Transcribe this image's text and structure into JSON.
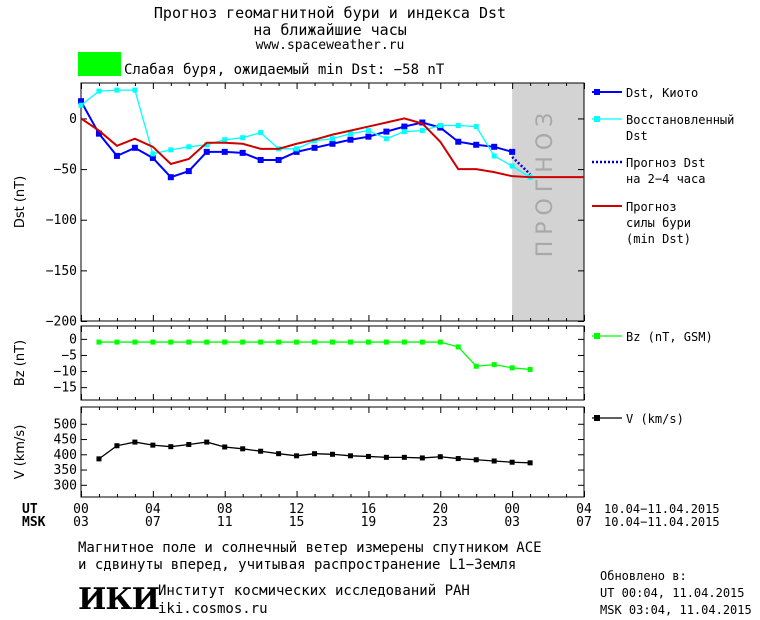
{
  "header": {
    "title_line1": "Прогноз геомагнитной бури и индекса Dst",
    "title_line2": "на ближайшие часы",
    "url": "www.spaceweather.ru",
    "status_text": "Слабая буря, ожидаемый min Dst: −58 nT",
    "status_color": "#00ff00"
  },
  "footer": {
    "note_line1": "Магнитное поле и солнечный ветер измерены спутником ACE",
    "note_line2": "и сдвинуты вперед, учитывая распространение L1−Земля",
    "institute_name": "Институт космических исследований РАН",
    "institute_site": "iki.cosmos.ru",
    "logo_text": "ИКИ",
    "updated_label": "Обновлено в:",
    "updated_ut": "UT  00:04, 11.04.2015",
    "updated_msk": "MSK 03:04, 11.04.2015"
  },
  "time_axis": {
    "ut_label": "UT",
    "msk_label": "MSK",
    "ut_ticks": [
      "00",
      "04",
      "08",
      "12",
      "16",
      "20",
      "00",
      "04"
    ],
    "msk_ticks": [
      "03",
      "07",
      "11",
      "15",
      "19",
      "23",
      "03",
      "07"
    ],
    "ut_range": "10.04−11.04.2015",
    "msk_range": "10.04−11.04.2015"
  },
  "chart_data": [
    {
      "type": "line",
      "ylabel": "Dst (nT)",
      "ylim": [
        -200,
        35
      ],
      "xlim_hours": [
        0,
        28
      ],
      "x_hours_utc_from_2015-04-10T00": [
        0,
        1,
        2,
        3,
        4,
        5,
        6,
        7,
        8,
        9,
        10,
        11,
        12,
        13,
        14,
        15,
        16,
        17,
        18,
        19,
        20,
        21,
        22,
        23,
        24,
        25
      ],
      "forecast_region_label": "ПРОГНОЗ",
      "forecast_region_hours": [
        24,
        28
      ],
      "forecast_region_color": "#d3d3d3",
      "series": [
        {
          "name": "Dst, Киото",
          "color": "#0000ff",
          "x": [
            0,
            1,
            2,
            3,
            4,
            5,
            6,
            7,
            8,
            9,
            10,
            11,
            12,
            13,
            14,
            15,
            16,
            17,
            18,
            19,
            20,
            21,
            22,
            23,
            24
          ],
          "values": [
            17,
            -15,
            -37,
            -29,
            -39,
            -58,
            -52,
            -33,
            -33,
            -34,
            -41,
            -41,
            -33,
            -29,
            -25,
            -21,
            -18,
            -13,
            -8,
            -4,
            -9,
            -23,
            -26,
            -28,
            -33
          ]
        },
        {
          "name": "Восстановленный Dst",
          "color": "#00ffff",
          "x": [
            0,
            1,
            2,
            3,
            4,
            5,
            6,
            7,
            8,
            9,
            10,
            11,
            12,
            13,
            14,
            15,
            16,
            17,
            18,
            19,
            20,
            21,
            22,
            23,
            24,
            25
          ],
          "values": [
            13,
            27,
            28,
            28,
            -35,
            -31,
            -28,
            -26,
            -21,
            -19,
            -14,
            -30,
            -30,
            -22,
            -20,
            -15,
            -12,
            -20,
            -13,
            -12,
            -7,
            -7,
            -8,
            -37,
            -47,
            -58
          ]
        },
        {
          "name": "Прогноз Dst на 2−4 часа",
          "color": "#0000c8",
          "x": [
            24,
            25
          ],
          "values": [
            -38,
            -55
          ]
        },
        {
          "name": "Прогноз силы бури (min Dst)",
          "color": "#cc0000",
          "x": [
            0,
            1,
            2,
            3,
            4,
            5,
            6,
            7,
            8,
            9,
            10,
            11,
            12,
            13,
            14,
            15,
            16,
            17,
            18,
            19,
            20,
            21,
            22,
            23,
            24,
            25,
            26,
            27,
            28
          ],
          "values": [
            0,
            -12,
            -27,
            -20,
            -28,
            -45,
            -40,
            -24,
            -24,
            -25,
            -30,
            -30,
            -25,
            -21,
            -16,
            -12,
            -8,
            -4,
            0,
            -5,
            -23,
            -50,
            -50,
            -53,
            -57,
            -58,
            -58,
            -58,
            -58
          ]
        }
      ],
      "legend_labels": {
        "dst_kyoto": "Dst, Киото",
        "recon_l1": "Восстановленный",
        "recon_l2": "Dst",
        "forecast_l1": "Прогноз Dst",
        "forecast_l2": "на 2−4 часа",
        "storm_l1": "Прогноз",
        "storm_l2": "силы бури",
        "storm_l3": "(min Dst)"
      },
      "yticks": [
        0,
        -50,
        -100,
        -150,
        -200
      ],
      "ytick_labels": [
        "0",
        "−50",
        "−100",
        "−150",
        "−200"
      ]
    },
    {
      "type": "line",
      "ylabel": "Bz (nT)",
      "ylim": [
        -19,
        4
      ],
      "series": [
        {
          "name": "Bz (nT, GSM)",
          "color": "#00ff00",
          "x": [
            1,
            2,
            3,
            4,
            5,
            6,
            7,
            8,
            9,
            10,
            11,
            12,
            13,
            14,
            15,
            16,
            17,
            18,
            19,
            20,
            21,
            22,
            23,
            24,
            25
          ],
          "values": [
            -1,
            -1,
            -1,
            -1,
            -1,
            -1,
            -1,
            -1,
            -1,
            -1,
            -1,
            -1,
            -1,
            -1,
            -1,
            -1,
            -1,
            -1,
            -1,
            -1,
            -2.5,
            -8.5,
            -8,
            -9,
            -9.5
          ]
        }
      ],
      "yticks": [
        0,
        -5,
        -10,
        -15
      ],
      "ytick_labels": [
        "0",
        "−5",
        "−10",
        "−15"
      ]
    },
    {
      "type": "line",
      "ylabel": "V (km/s)",
      "ylim": [
        260,
        555
      ],
      "series": [
        {
          "name": "V (km/s)",
          "color": "#000000",
          "x": [
            1,
            2,
            3,
            4,
            5,
            6,
            7,
            8,
            9,
            10,
            11,
            12,
            13,
            14,
            15,
            16,
            17,
            18,
            19,
            20,
            21,
            22,
            23,
            24,
            25
          ],
          "values": [
            385,
            428,
            440,
            430,
            425,
            432,
            440,
            424,
            418,
            410,
            402,
            395,
            402,
            400,
            395,
            393,
            390,
            390,
            388,
            392,
            386,
            382,
            378,
            374,
            372
          ]
        }
      ],
      "yticks": [
        300,
        350,
        400,
        450,
        500
      ],
      "ytick_labels": [
        "300",
        "350",
        "400",
        "450",
        "500"
      ]
    }
  ]
}
